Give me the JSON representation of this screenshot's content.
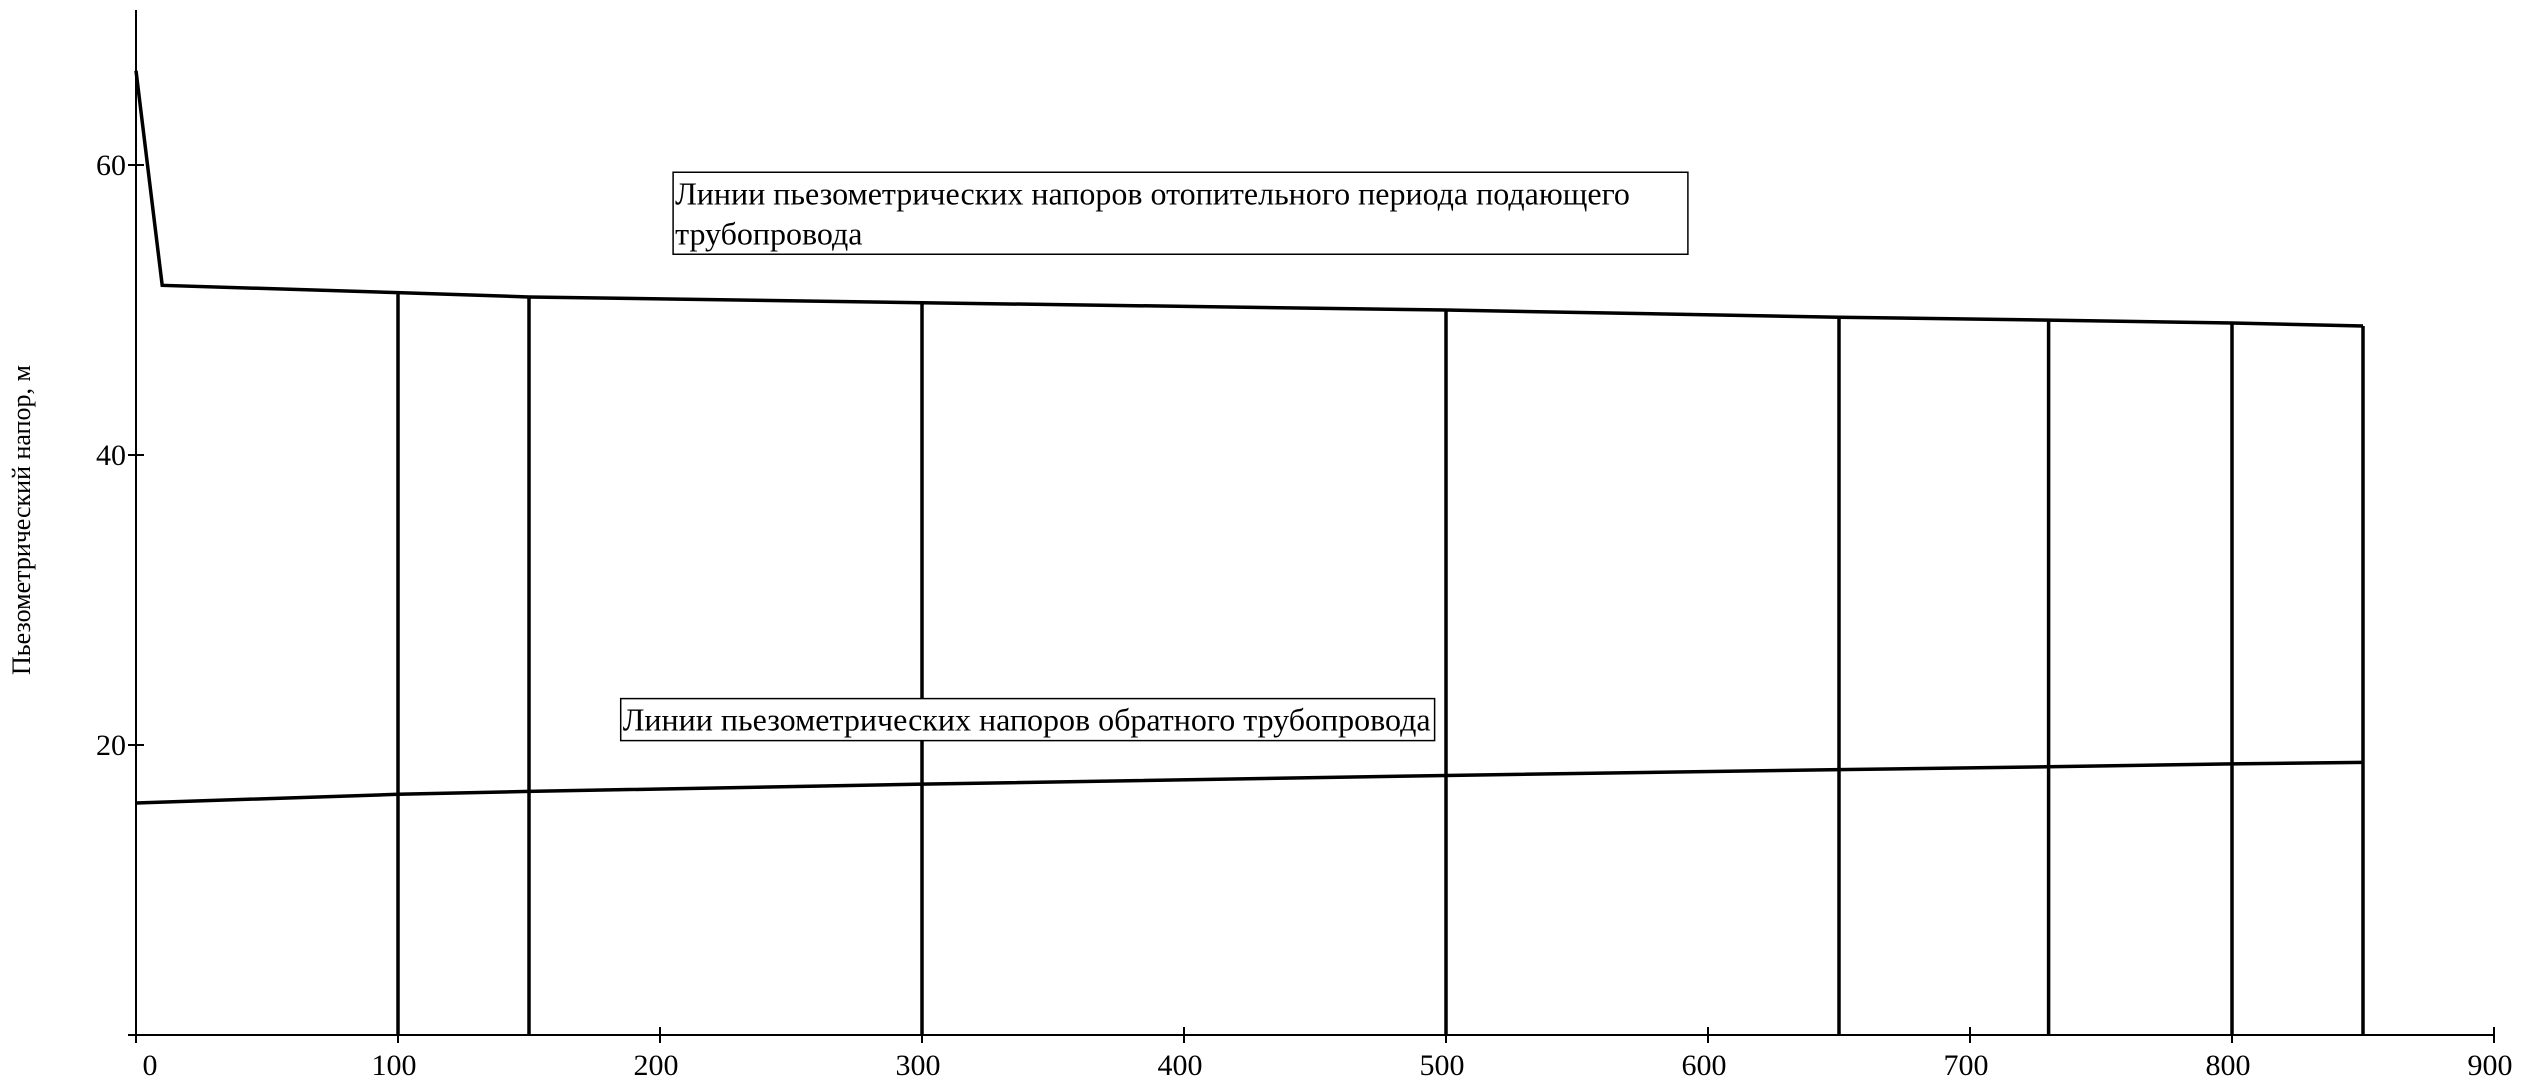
{
  "chart_data": {
    "type": "line",
    "title": "",
    "xlabel": "",
    "ylabel": "Пьезометрический напор, м",
    "xlim": [
      0,
      900
    ],
    "ylim": [
      0,
      70
    ],
    "grid": false,
    "x_ticks": [
      0,
      100,
      200,
      300,
      400,
      500,
      600,
      700,
      800,
      900
    ],
    "y_ticks": [
      20,
      40,
      60
    ],
    "series": [
      {
        "x": [
          0,
          10,
          100,
          150,
          300,
          500,
          650,
          730,
          800,
          850
        ],
        "values": [
          66.5,
          51.7,
          51.2,
          50.9,
          50.5,
          50.0,
          49.5,
          49.3,
          49.1,
          48.9
        ]
      },
      {
        "x": [
          0,
          100,
          150,
          300,
          500,
          650,
          730,
          800,
          850
        ],
        "values": [
          16.0,
          16.6,
          16.8,
          17.3,
          17.9,
          18.3,
          18.5,
          18.7,
          18.8
        ]
      }
    ],
    "verticals": [
      {
        "x": 100,
        "y_bottom": 0,
        "y_top": 51.2
      },
      {
        "x": 150,
        "y_bottom": 0,
        "y_top": 50.9
      },
      {
        "x": 300,
        "y_bottom": 0,
        "y_top": 50.5
      },
      {
        "x": 500,
        "y_bottom": 0,
        "y_top": 50.0
      },
      {
        "x": 650,
        "y_bottom": 0,
        "y_top": 49.5
      },
      {
        "x": 730,
        "y_bottom": 0,
        "y_top": 49.3
      },
      {
        "x": 800,
        "y_bottom": 0,
        "y_top": 49.1
      },
      {
        "x": 850,
        "y_bottom": 0,
        "y_top": 48.9
      }
    ],
    "annotations": [
      {
        "lines": [
          "Линии пьезометрических напоров отопительного периода подающего",
          "трубопровода"
        ],
        "x": 205,
        "y": 59.5
      },
      {
        "lines": [
          "Линии пьезометрических напоров обратного трубопровода"
        ],
        "x": 185,
        "y": 23.2
      }
    ]
  }
}
